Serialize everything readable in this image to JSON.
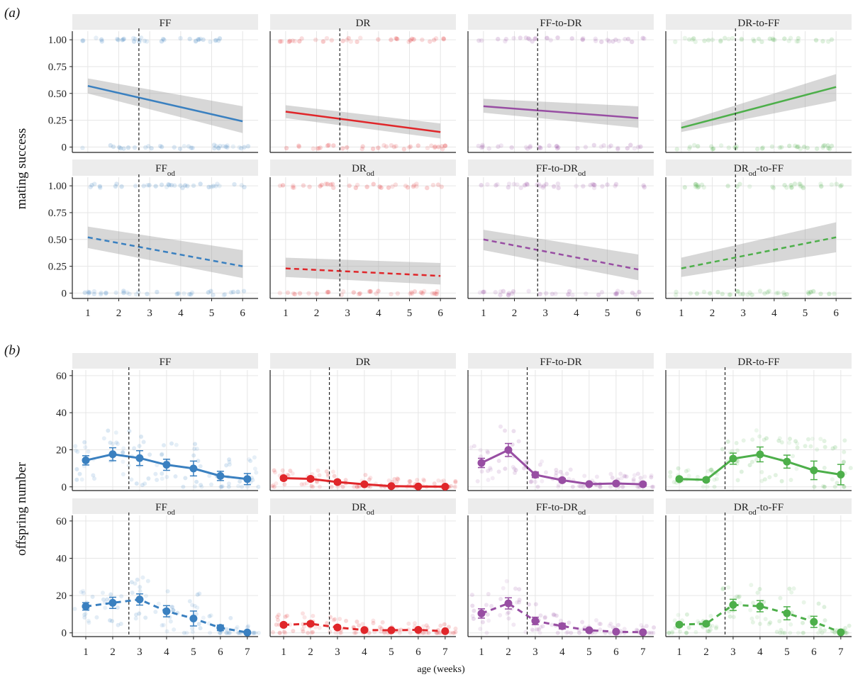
{
  "figure": {
    "panel_a_letter": "(a)",
    "panel_b_letter": "(b)",
    "x_axis_title": "age (weeks)",
    "colors": {
      "FF": "#3a80c0",
      "DR": "#e0262a",
      "FF-to-DR": "#984ea3",
      "DR-to-FF": "#4daf4a"
    }
  },
  "chart_data": [
    {
      "id": "a",
      "type": "line",
      "ylabel": "mating success",
      "xlabel": "",
      "xlim": [
        0.5,
        6.5
      ],
      "ylim": [
        -0.05,
        1.08
      ],
      "xticks": [
        1,
        2,
        3,
        4,
        5,
        6
      ],
      "yticks": [
        0,
        0.25,
        0.5,
        0.75,
        1.0
      ],
      "yticklabels": [
        "0",
        "0.25",
        "0.50",
        "0.75",
        "1.00"
      ],
      "grid": true,
      "panels": [
        {
          "strip": "FF",
          "strip_sub": "",
          "strip_post": "",
          "group": "FF",
          "dashed": false,
          "vline": 2.65,
          "x": [
            1,
            6
          ],
          "fit": [
            0.57,
            0.24
          ],
          "ci_lo": [
            0.5,
            0.13
          ],
          "ci_hi": [
            0.64,
            0.38
          ]
        },
        {
          "strip": "DR",
          "strip_sub": "",
          "strip_post": "",
          "group": "DR",
          "dashed": false,
          "vline": 2.75,
          "x": [
            1,
            6
          ],
          "fit": [
            0.33,
            0.14
          ],
          "ci_lo": [
            0.27,
            0.08
          ],
          "ci_hi": [
            0.39,
            0.22
          ]
        },
        {
          "strip": "FF-to-DR",
          "strip_sub": "",
          "strip_post": "",
          "group": "FF-to-DR",
          "dashed": false,
          "vline": 2.75,
          "x": [
            1,
            6
          ],
          "fit": [
            0.38,
            0.27
          ],
          "ci_lo": [
            0.32,
            0.18
          ],
          "ci_hi": [
            0.45,
            0.38
          ]
        },
        {
          "strip": "DR-to-FF",
          "strip_sub": "",
          "strip_post": "",
          "group": "DR-to-FF",
          "dashed": false,
          "vline": 2.75,
          "x": [
            1,
            6
          ],
          "fit": [
            0.18,
            0.56
          ],
          "ci_lo": [
            0.14,
            0.43
          ],
          "ci_hi": [
            0.23,
            0.68
          ]
        },
        {
          "strip": "FF",
          "strip_sub": "od",
          "strip_post": "",
          "group": "FF",
          "dashed": true,
          "vline": 2.65,
          "x": [
            1,
            6
          ],
          "fit": [
            0.52,
            0.25
          ],
          "ci_lo": [
            0.42,
            0.14
          ],
          "ci_hi": [
            0.62,
            0.4
          ]
        },
        {
          "strip": "DR",
          "strip_sub": "od",
          "strip_post": "",
          "group": "DR",
          "dashed": true,
          "vline": 2.75,
          "x": [
            1,
            6
          ],
          "fit": [
            0.23,
            0.16
          ],
          "ci_lo": [
            0.15,
            0.08
          ],
          "ci_hi": [
            0.33,
            0.28
          ]
        },
        {
          "strip": "FF-to-DR",
          "strip_sub": "od",
          "strip_post": "",
          "group": "FF-to-DR",
          "dashed": true,
          "vline": 2.75,
          "x": [
            1,
            6
          ],
          "fit": [
            0.5,
            0.22
          ],
          "ci_lo": [
            0.4,
            0.12
          ],
          "ci_hi": [
            0.59,
            0.36
          ]
        },
        {
          "strip": "DR",
          "strip_sub": "od",
          "strip_post": "-to-FF",
          "group": "DR-to-FF",
          "dashed": true,
          "vline": 2.75,
          "x": [
            1,
            6
          ],
          "fit": [
            0.23,
            0.52
          ],
          "ci_lo": [
            0.15,
            0.38
          ],
          "ci_hi": [
            0.33,
            0.66
          ]
        }
      ]
    },
    {
      "id": "b",
      "type": "line",
      "ylabel": "offspring number",
      "xlabel": "age (weeks)",
      "xlim": [
        0.5,
        7.4
      ],
      "ylim": [
        -2,
        63
      ],
      "xticks": [
        1,
        2,
        3,
        4,
        5,
        6,
        7
      ],
      "yticks": [
        0,
        20,
        40,
        60
      ],
      "yticklabels": [
        "0",
        "20",
        "40",
        "60"
      ],
      "grid": true,
      "panels": [
        {
          "strip": "FF",
          "strip_sub": "",
          "strip_post": "",
          "group": "FF",
          "dashed": false,
          "vline": 2.6,
          "x": [
            1,
            2,
            3,
            4,
            5,
            6,
            7
          ],
          "mean": [
            14.3,
            17.6,
            15.5,
            11.9,
            9.9,
            5.9,
            4.2
          ],
          "err": [
            2.5,
            3.5,
            4,
            3,
            4,
            2.5,
            3
          ]
        },
        {
          "strip": "DR",
          "strip_sub": "",
          "strip_post": "",
          "group": "DR",
          "dashed": false,
          "vline": 2.7,
          "x": [
            1,
            2,
            3,
            4,
            5,
            6,
            7
          ],
          "mean": [
            4.7,
            4.3,
            2.6,
            1.4,
            0.4,
            0.2,
            0.1
          ],
          "err": [
            1,
            1,
            1,
            0.7,
            0.4,
            0.3,
            0.2
          ]
        },
        {
          "strip": "FF-to-DR",
          "strip_sub": "",
          "strip_post": "",
          "group": "FF-to-DR",
          "dashed": false,
          "vline": 2.7,
          "x": [
            1,
            2,
            3,
            4,
            5,
            6,
            7
          ],
          "mean": [
            12.9,
            19.9,
            6.5,
            3.6,
            1.5,
            1.8,
            1.4
          ],
          "err": [
            2.5,
            3.5,
            1.5,
            1,
            0.6,
            0.8,
            1
          ]
        },
        {
          "strip": "DR-to-FF",
          "strip_sub": "",
          "strip_post": "",
          "group": "DR-to-FF",
          "dashed": false,
          "vline": 2.7,
          "x": [
            1,
            2,
            3,
            4,
            5,
            6,
            7
          ],
          "mean": [
            4.2,
            3.8,
            15.2,
            17.5,
            13.6,
            8.9,
            6.6
          ],
          "err": [
            1,
            1,
            3,
            4,
            3.5,
            5,
            5.5
          ]
        },
        {
          "strip": "FF",
          "strip_sub": "od",
          "strip_post": "",
          "group": "FF",
          "dashed": true,
          "vline": 2.6,
          "x": [
            1,
            2,
            3,
            4,
            5,
            6,
            7
          ],
          "mean": [
            14.2,
            16.1,
            17.9,
            11.6,
            7.7,
            2.7,
            0.2
          ],
          "err": [
            2,
            3,
            3,
            3,
            4,
            1.5,
            0.2
          ]
        },
        {
          "strip": "DR",
          "strip_sub": "od",
          "strip_post": "",
          "group": "DR",
          "dashed": true,
          "vline": 2.7,
          "x": [
            1,
            2,
            3,
            4,
            5,
            6,
            7
          ],
          "mean": [
            4.3,
            4.9,
            2.9,
            1.5,
            1.4,
            1.6,
            0.9
          ],
          "err": [
            1,
            1,
            1,
            0.7,
            0.6,
            0.7,
            0.5
          ]
        },
        {
          "strip": "FF-to-DR",
          "strip_sub": "od",
          "strip_post": "",
          "group": "FF-to-DR",
          "dashed": true,
          "vline": 2.7,
          "x": [
            1,
            2,
            3,
            4,
            5,
            6,
            7
          ],
          "mean": [
            10.4,
            15.8,
            6.4,
            3.6,
            1.4,
            0.6,
            0.3
          ],
          "err": [
            2.5,
            3,
            2,
            1.5,
            0.8,
            0.5,
            0.3
          ]
        },
        {
          "strip": "DR",
          "strip_sub": "od",
          "strip_post": "-to-FF",
          "group": "DR-to-FF",
          "dashed": true,
          "vline": 2.7,
          "x": [
            1,
            2,
            3,
            4,
            5,
            6,
            7
          ],
          "mean": [
            4.4,
            4.9,
            15.0,
            14.3,
            10.5,
            5.9,
            0.3
          ],
          "err": [
            1,
            1,
            3,
            3,
            3.5,
            3,
            0.3
          ]
        }
      ]
    }
  ]
}
